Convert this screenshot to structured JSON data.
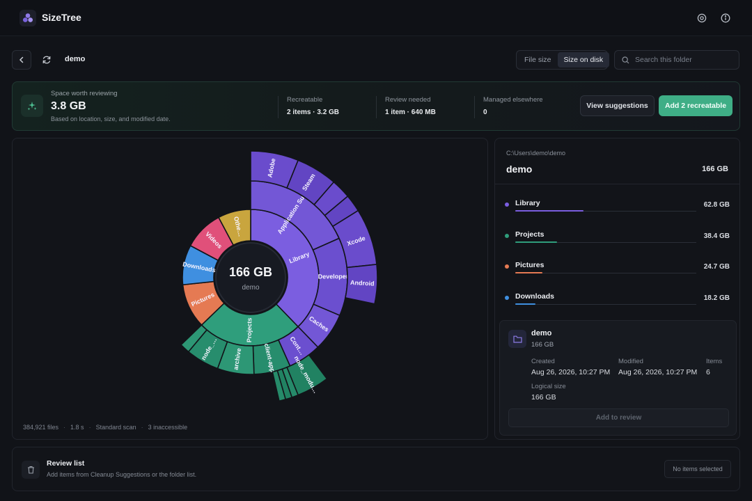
{
  "app": {
    "title": "SizeTree"
  },
  "nav": {
    "folder_name": "demo",
    "view_modes": [
      "File size",
      "Size on disk"
    ],
    "active_view": "Size on disk",
    "search_placeholder": "Search this folder"
  },
  "banner": {
    "kicker": "Space worth reviewing",
    "total": "3.8 GB",
    "subtitle": "Based on location, size, and modified date.",
    "stats": [
      {
        "label": "Recreatable",
        "value": "2 items · 3.2 GB"
      },
      {
        "label": "Review needed",
        "value": "1 item · 640 MB"
      },
      {
        "label": "Managed elsewhere",
        "value": "0"
      }
    ],
    "view_button": "View suggestions",
    "add_button": "Add 2 recreatable",
    "accent": "#3fae86"
  },
  "sunburst": {
    "center_size": "166 GB",
    "center_name": "demo",
    "rings": [
      [
        {
          "label": "Library",
          "size_gb": 62.8,
          "color": "#7b5ee0"
        },
        {
          "label": "Projects",
          "size_gb": 38.4,
          "color": "#2f9e7c"
        },
        {
          "label": "Pictures",
          "size_gb": 24.7,
          "color": "#e57a53"
        },
        {
          "label": "Downloads",
          "size_gb": 18.2,
          "color": "#3f8fe0"
        },
        {
          "label": "Videos",
          "size_gb": 12.5,
          "color": "#e0507a"
        },
        {
          "label": "Othe…",
          "size_gb": 9.4,
          "color": "#c9a53e"
        }
      ],
      [
        {
          "label": "Application Support",
          "parent": "Library",
          "color": "#7357d6"
        },
        {
          "label": "Developer",
          "parent": "Library",
          "color": "#6b4fcf"
        },
        {
          "label": "Caches",
          "parent": "Library",
          "color": "#7357d6"
        },
        {
          "label": "Cont…",
          "parent": "Library",
          "color": "#6b4fcf"
        },
        {
          "label": "client-app",
          "parent": "Projects",
          "color": "#278d6d"
        },
        {
          "label": "archive",
          "parent": "Projects",
          "color": "#2d9775"
        },
        {
          "label": "node_…",
          "parent": "Projects",
          "color": "#278d6d"
        },
        {
          "label": "",
          "parent": "Projects",
          "color": "#2d9775"
        }
      ],
      [
        {
          "label": "Adobe",
          "parent": "Application Support",
          "color": "#6a4ccc"
        },
        {
          "label": "Steam",
          "parent": "Application Support",
          "color": "#6245c3"
        },
        {
          "label": "",
          "parent": "Application Support",
          "color": "#6a4ccc"
        },
        {
          "label": "",
          "parent": "Application Support",
          "color": "#6245c3"
        },
        {
          "label": "Xcode",
          "parent": "Developer",
          "color": "#6a4ccc"
        },
        {
          "label": "Android",
          "parent": "Developer",
          "color": "#6245c3"
        },
        {
          "label": "node_modu…",
          "parent": "client-app",
          "color": "#218262"
        },
        {
          "label": "",
          "parent": "client-app",
          "color": "#268b6a"
        },
        {
          "label": "",
          "parent": "client-app",
          "color": "#218262"
        },
        {
          "label": "",
          "parent": "client-app",
          "color": "#268b6a"
        }
      ]
    ],
    "footer": [
      "384,921 files",
      "1.8 s",
      "Standard scan",
      "3 inaccessible"
    ]
  },
  "details": {
    "path": "C:\\Users\\demo\\demo",
    "title": "demo",
    "size": "166 GB",
    "categories": [
      {
        "name": "Library",
        "size": "62.8 GB",
        "color": "#7b5ee0",
        "fraction": 0.378
      },
      {
        "name": "Projects",
        "size": "38.4 GB",
        "color": "#2f9e7c",
        "fraction": 0.231
      },
      {
        "name": "Pictures",
        "size": "24.7 GB",
        "color": "#e57a53",
        "fraction": 0.149
      },
      {
        "name": "Downloads",
        "size": "18.2 GB",
        "color": "#3f8fe0",
        "fraction": 0.11
      }
    ],
    "card": {
      "name": "demo",
      "size": "166 GB",
      "created_label": "Created",
      "created": "Aug 26, 2026, 10:27 PM",
      "modified_label": "Modified",
      "modified": "Aug 26, 2026, 10:27 PM",
      "items_label": "Items",
      "items": "6",
      "logical_label": "Logical size",
      "logical": "166 GB",
      "button": "Add to review"
    }
  },
  "review": {
    "title": "Review list",
    "subtitle": "Add items from Cleanup Suggestions or the folder list.",
    "status": "No items selected"
  }
}
